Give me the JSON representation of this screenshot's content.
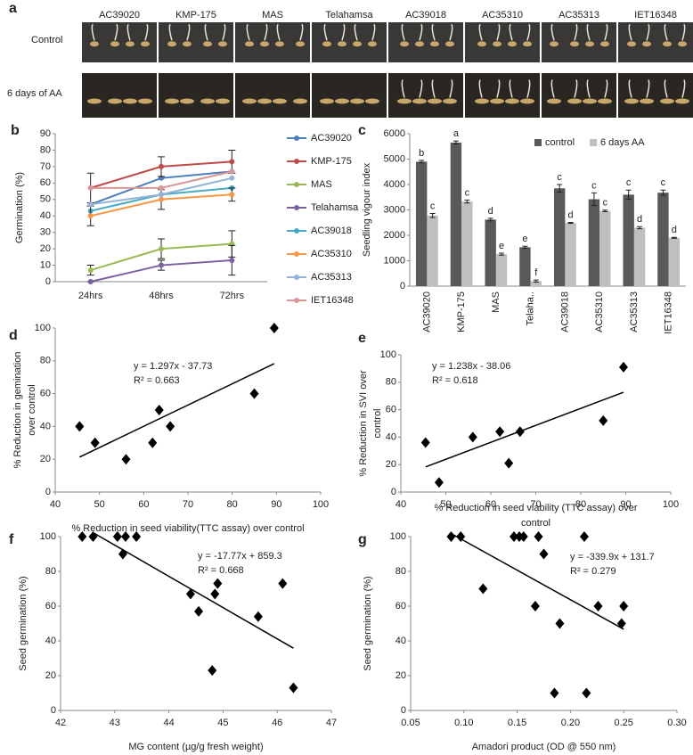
{
  "panel_a": {
    "label": "a",
    "columns": [
      "AC39020",
      "KMP-175",
      "MAS",
      "Telahamsa",
      "AC39018",
      "AC35310",
      "AC35313",
      "IET16348"
    ],
    "rows": [
      "Control",
      "6 days of AA"
    ]
  },
  "chart_data": [
    {
      "type": "line",
      "label": "b",
      "ylabel": "Germination (%)",
      "categories": [
        "24hrs",
        "48hrs",
        "72hrs"
      ],
      "ylim": [
        0,
        90
      ],
      "yticks": [
        0,
        10,
        20,
        30,
        40,
        50,
        60,
        70,
        80,
        90
      ],
      "series": [
        {
          "name": "AC39020",
          "color": "#4a7ebb",
          "values": [
            47,
            63,
            67
          ]
        },
        {
          "name": "KMP-175",
          "color": "#be4b48",
          "values": [
            57,
            70,
            73
          ],
          "errors": [
            9,
            6,
            7
          ]
        },
        {
          "name": "MAS",
          "color": "#98b954",
          "values": [
            7,
            20,
            23
          ],
          "errors": [
            3,
            6,
            8
          ]
        },
        {
          "name": "Telahamsa",
          "color": "#7d60a0",
          "values": [
            0,
            10,
            13
          ],
          "errors": [
            0,
            3,
            9
          ]
        },
        {
          "name": "AC39018",
          "color": "#46aac5",
          "values": [
            43,
            53,
            57
          ]
        },
        {
          "name": "AC35310",
          "color": "#f79646",
          "values": [
            40,
            50,
            53
          ],
          "errors": [
            6,
            6,
            4
          ]
        },
        {
          "name": "AC35313",
          "color": "#95b3d7",
          "values": [
            47,
            53,
            63
          ]
        },
        {
          "name": "IET16348",
          "color": "#d99694",
          "values": [
            57,
            57,
            67
          ]
        }
      ]
    },
    {
      "type": "bar",
      "label": "c",
      "ylabel": "Seedling vigour index",
      "categories": [
        "AC39020",
        "KMP-175",
        "MAS",
        "Telaha..",
        "AC39018",
        "AC35310",
        "AC35313",
        "IET16348"
      ],
      "ylim": [
        0,
        6000
      ],
      "yticks": [
        0,
        1000,
        2000,
        3000,
        4000,
        5000,
        6000
      ],
      "series": [
        {
          "name": "control",
          "color": "#595959",
          "values": [
            4900,
            5650,
            2620,
            1530,
            3850,
            3420,
            3600,
            3680
          ],
          "errors": [
            50,
            60,
            50,
            40,
            150,
            250,
            180,
            100
          ],
          "letters": [
            "b",
            "a",
            "d",
            "e",
            "c",
            "c",
            "c",
            "c"
          ]
        },
        {
          "name": "6 days AA",
          "color": "#bfbfbf",
          "values": [
            2780,
            3330,
            1260,
            200,
            2490,
            2960,
            2300,
            1900
          ],
          "errors": [
            80,
            60,
            40,
            40,
            20,
            30,
            40,
            20
          ],
          "letters": [
            "c",
            "c",
            "e",
            "f",
            "d",
            "c",
            "d",
            "d"
          ]
        }
      ]
    },
    {
      "type": "scatter",
      "label": "d",
      "ylabel": [
        "% Reduction in gemination",
        "over control"
      ],
      "xlabel": [
        "% Reduction in seed viability(TTC assay) over control"
      ],
      "equation": "y = 1.297x - 37.73",
      "r2": "R² = 0.663",
      "xlim": [
        40,
        100
      ],
      "xticks": [
        40,
        50,
        60,
        70,
        80,
        90,
        100
      ],
      "ylim": [
        0,
        100
      ],
      "yticks": [
        0,
        20,
        40,
        60,
        80,
        100
      ],
      "x": [
        45.5,
        49,
        56,
        62,
        63.5,
        66,
        85,
        89.5
      ],
      "values": [
        40,
        30,
        20,
        30,
        50,
        40,
        60,
        100
      ],
      "trendline": {
        "x": [
          45.5,
          89.5
        ],
        "y": [
          21.3,
          78.3
        ]
      }
    },
    {
      "type": "scatter",
      "label": "e",
      "ylabel": [
        "% Reduction in SVI over",
        "control"
      ],
      "xlabel": [
        "% Reduction in seed viability (TTC assay) over",
        "control"
      ],
      "equation": "y = 1.238x - 38.06",
      "r2": "R² = 0.618",
      "xlim": [
        40,
        100
      ],
      "xticks": [
        40,
        50,
        60,
        70,
        80,
        90,
        100
      ],
      "ylim": [
        0,
        100
      ],
      "yticks": [
        0,
        20,
        40,
        60,
        80,
        100
      ],
      "x": [
        45.5,
        48.5,
        56,
        62,
        64,
        66.5,
        85,
        89.5
      ],
      "values": [
        36,
        7,
        40,
        44,
        21,
        44,
        52,
        91
      ],
      "trendline": {
        "x": [
          45.5,
          89.5
        ],
        "y": [
          18.3,
          72.7
        ]
      }
    },
    {
      "type": "scatter",
      "label": "f",
      "ylabel": [
        "Seed germination (%)"
      ],
      "xlabel": [
        "MG content (µg/g fresh weight)"
      ],
      "equation": "y = -17.77x + 859.3",
      "r2": "R² = 0.668",
      "xlim": [
        42,
        47
      ],
      "xticks": [
        42,
        43,
        44,
        45,
        46,
        47
      ],
      "ylim": [
        0,
        100
      ],
      "yticks": [
        0,
        20,
        40,
        60,
        80,
        100
      ],
      "x": [
        42.4,
        42.6,
        43.05,
        43.15,
        43.2,
        43.4,
        44.4,
        44.55,
        44.8,
        44.85,
        44.9,
        45.65,
        46.1,
        46.3
      ],
      "values": [
        100,
        100,
        100,
        90,
        100,
        100,
        67,
        57,
        23,
        67,
        73,
        54,
        73,
        13
      ],
      "trendline": {
        "x": [
          42.6,
          46.3
        ],
        "y": [
          102.3,
          35.8
        ]
      }
    },
    {
      "type": "scatter",
      "label": "g",
      "ylabel": [
        "Seed germination (%)"
      ],
      "xlabel": [
        "Amadori product (OD @ 550 nm)"
      ],
      "equation": "y = -339.9x + 131.7",
      "r2": "R² = 0.279",
      "xlim": [
        0.05,
        0.3
      ],
      "xticks": [
        0.05,
        {
          "value": 0.1,
          "label": "0.10"
        },
        0.15,
        {
          "value": 0.2,
          "label": "0.20"
        },
        0.25,
        {
          "value": 0.3,
          "label": "0.30"
        }
      ],
      "ylim": [
        0,
        100
      ],
      "yticks": [
        0,
        20,
        40,
        60,
        80,
        100
      ],
      "x": [
        0.088,
        0.097,
        0.118,
        0.147,
        0.152,
        0.156,
        0.167,
        0.17,
        0.175,
        0.185,
        0.19,
        0.213,
        0.215,
        0.226,
        0.248,
        0.25
      ],
      "values": [
        100,
        100,
        70,
        100,
        100,
        100,
        60,
        100,
        90,
        10,
        50,
        100,
        10,
        60,
        50,
        60
      ],
      "trendline": {
        "x": [
          0.09,
          0.25
        ],
        "y": [
          101.1,
          46.7
        ]
      }
    }
  ]
}
